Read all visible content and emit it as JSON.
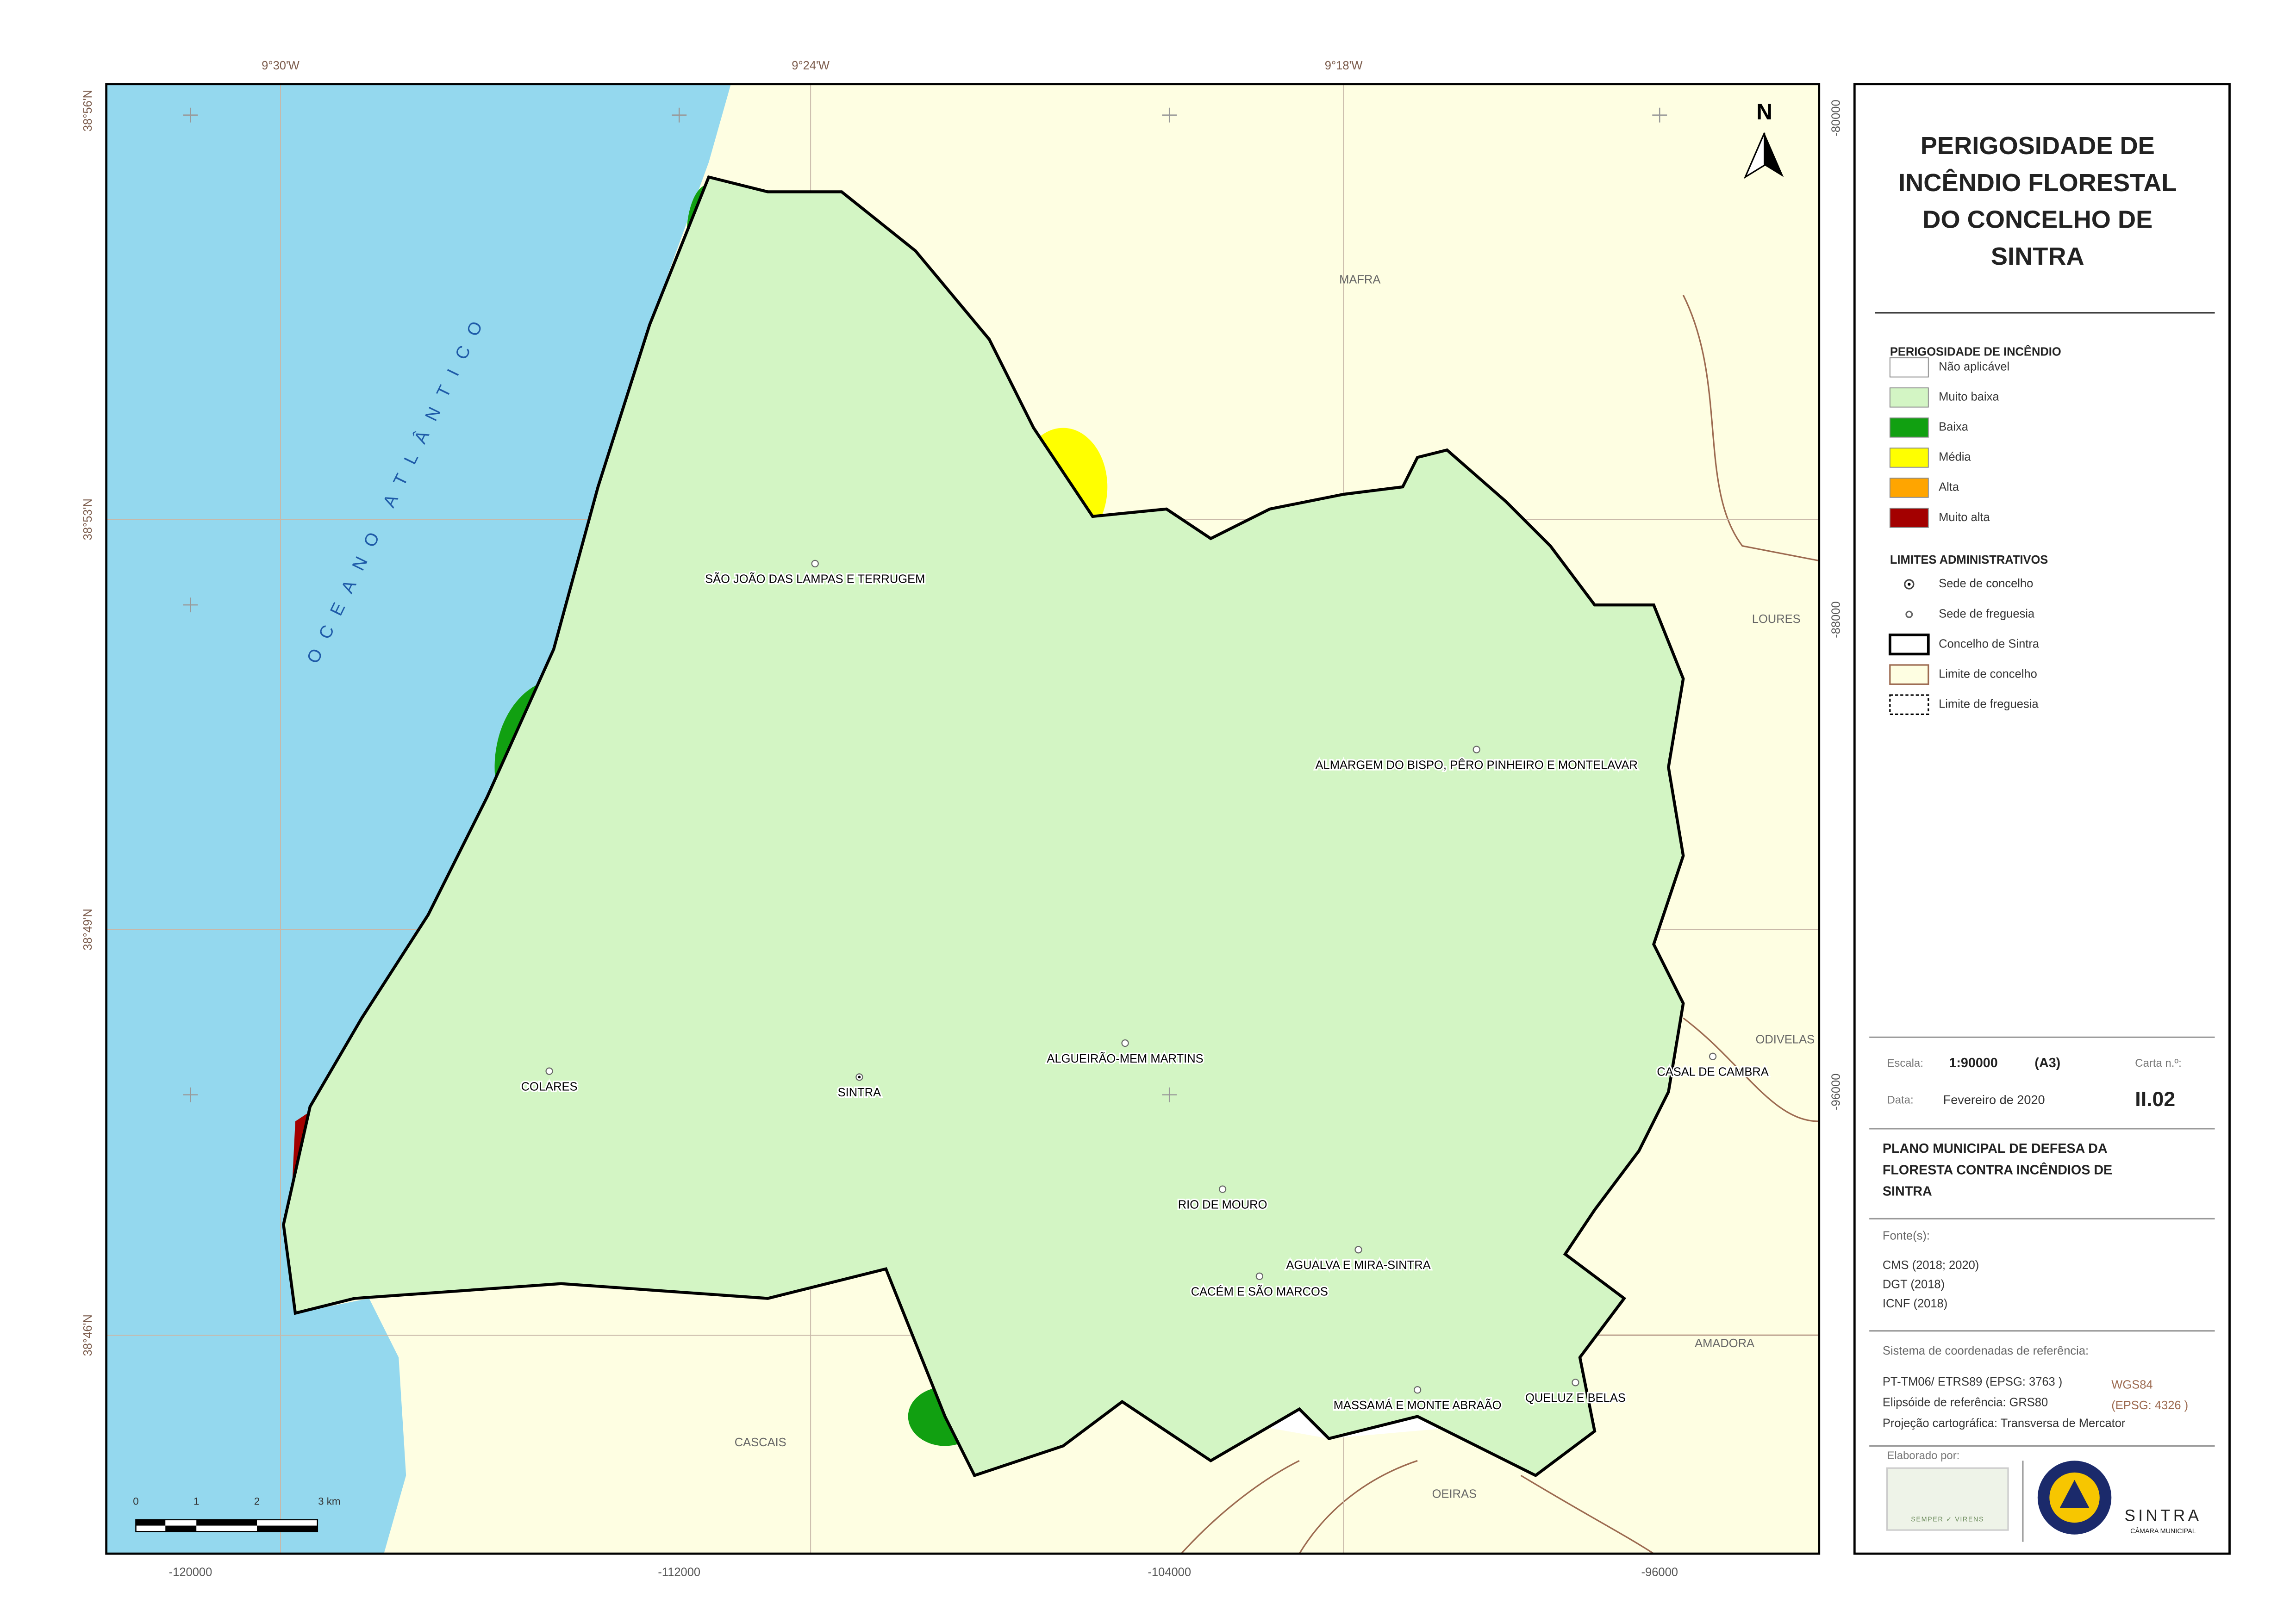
{
  "title": [
    "PERIGOSIDADE DE",
    "INCÊNDIO FLORESTAL",
    "DO CONCELHO DE",
    "SINTRA"
  ],
  "map": {
    "top_labels": [
      "9°30'W",
      "9°24'W",
      "9°18'W"
    ],
    "left_labels": [
      "38°56'N",
      "38°53'N",
      "38°49'N",
      "38°46'N"
    ],
    "bottom_labels": [
      "-120000",
      "-112000",
      "-104000",
      "-96000"
    ],
    "right_labels": [
      "-80000",
      "-88000",
      "-96000"
    ],
    "north": "N",
    "sea_label": "OCEANO ATLÂNTICO",
    "neighbours": [
      "MAFRA",
      "LOURES",
      "ODIVELAS",
      "AMADORA",
      "OEIRAS",
      "CASCAIS"
    ],
    "places": [
      "SÃO JOÃO DAS LAMPAS E TERRUGEM",
      "ALMARGEM DO BISPO, PÊRO PINHEIRO E MONTELAVAR",
      "ALGUEIRÃO-MEM MARTINS",
      "COLARES",
      "SINTRA",
      "CASAL DE CAMBRA",
      "RIO DE MOURO",
      "AGUALVA E MIRA-SINTRA",
      "CACÉM E SÃO MARCOS",
      "MASSAMÁ E MONTE ABRAÃO",
      "QUELUZ E BELAS"
    ],
    "scale_bar": [
      "0",
      "1",
      "2",
      "3 km"
    ]
  },
  "legend": {
    "heading": "PERIGOSIDADE DE INCÊNDIO",
    "classes": [
      {
        "label": "Não aplicável",
        "color": "#ffffff"
      },
      {
        "label": "Muito baixa",
        "color": "#d3f5c4"
      },
      {
        "label": "Baixa",
        "color": "#11a011"
      },
      {
        "label": "Média",
        "color": "#ffff00"
      },
      {
        "label": "Alta",
        "color": "#ffa500"
      },
      {
        "label": "Muito alta",
        "color": "#a30000"
      }
    ],
    "limits_heading": "LIMITES ADMINISTRATIVOS",
    "limits": [
      "Sede de concelho",
      "Sede de freguesia",
      "Concelho de Sintra",
      "Limite de concelho",
      "Limite de freguesia"
    ]
  },
  "info": {
    "scale_label": "Escala:",
    "scale": "1:90000",
    "paper": "(A3)",
    "sheet_label": "Carta n.º:",
    "date_label": "Data:",
    "date": "Fevereiro de 2020",
    "sheet": "II.02",
    "plan": [
      "PLANO MUNICIPAL DE DEFESA DA",
      "FLORESTA CONTRA INCÊNDIOS DE",
      "SINTRA"
    ],
    "sources_label": "Fonte(s):",
    "sources": [
      "CMS (2018; 2020)",
      "DGT (2018)",
      "ICNF (2018)"
    ],
    "crs_label": "Sistema de coordenadas de referência:",
    "crs": [
      "PT-TM06/ ETRS89 (EPSG: 3763 )",
      "Elipsóide de referência: GRS80",
      "Projeção cartográfica: Transversa de Mercator"
    ],
    "crs_alt": [
      "WGS84",
      "(EPSG: 4326 )"
    ],
    "made_by": "Elaborado por:",
    "logo_text": "SEMPER ✓ VIRENS",
    "logo2": "SINTRA",
    "logo2_sub": "CÂMARA MUNICIPAL"
  }
}
